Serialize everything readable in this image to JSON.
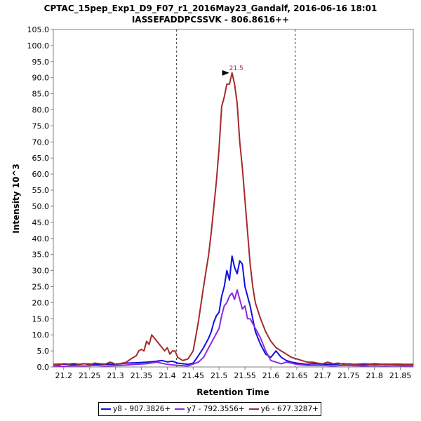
{
  "chart_data": {
    "type": "line",
    "title": "CPTAC_15pep_Exp1_D9_F07_r1_2016May23_Gandalf, 2016-06-16 18:01",
    "subtitle": "IASSEFADDPCSSVK - 806.8616++",
    "xlabel": "Retention Time",
    "ylabel": "Intensity 10^3",
    "xlim": [
      21.18,
      21.875
    ],
    "ylim": [
      0,
      105
    ],
    "xticks": [
      "21.2",
      "21.3",
      "21.4",
      "21.5",
      "21.6",
      "21.7",
      "21.8"
    ],
    "xtick_values": [
      21.2,
      21.25,
      21.3,
      21.35,
      21.4,
      21.45,
      21.5,
      21.55,
      21.6,
      21.65,
      21.7,
      21.75,
      21.8,
      21.85
    ],
    "xtick_labels": [
      "21.2",
      "21.25",
      "21.3",
      "21.35",
      "21.4",
      "21.45",
      "21.5",
      "21.55",
      "21.6",
      "21.65",
      "21.7",
      "21.75",
      "21.8",
      "21.85"
    ],
    "ytick_values": [
      0,
      5,
      10,
      15,
      20,
      25,
      30,
      35,
      40,
      45,
      50,
      55,
      60,
      65,
      70,
      75,
      80,
      85,
      90,
      95,
      100,
      105
    ],
    "ytick_labels": [
      "0.0",
      "5.0",
      "10.0",
      "15.0",
      "20.0",
      "25.0",
      "30.0",
      "35.0",
      "40.0",
      "45.0",
      "50.0",
      "55.0",
      "60.0",
      "65.0",
      "70.0",
      "75.0",
      "80.0",
      "85.0",
      "90.0",
      "95.0",
      "100.0",
      "105.0"
    ],
    "grid": false,
    "legend_position": "bottom",
    "vlines": [
      21.418,
      21.647
    ],
    "annotation": {
      "text": "21.5",
      "x": 21.525,
      "y": 91.5
    },
    "series": [
      {
        "name": "y8 - 907.3826+",
        "color": "#1010e0",
        "x": [
          21.18,
          21.2,
          21.22,
          21.24,
          21.26,
          21.28,
          21.3,
          21.32,
          21.34,
          21.36,
          21.38,
          21.39,
          21.4,
          21.41,
          21.42,
          21.43,
          21.44,
          21.45,
          21.46,
          21.47,
          21.48,
          21.485,
          21.49,
          21.495,
          21.5,
          21.505,
          21.51,
          21.515,
          21.52,
          21.525,
          21.53,
          21.535,
          21.54,
          21.545,
          21.55,
          21.555,
          21.56,
          21.565,
          21.57,
          21.58,
          21.59,
          21.6,
          21.61,
          21.62,
          21.63,
          21.64,
          21.65,
          21.66,
          21.67,
          21.68,
          21.7,
          21.72,
          21.74,
          21.76,
          21.78,
          21.8,
          21.82,
          21.84,
          21.86,
          21.875
        ],
        "y": [
          0.8,
          0.9,
          0.7,
          1.0,
          0.8,
          0.9,
          0.8,
          1.2,
          1.3,
          1.5,
          1.8,
          2.0,
          1.6,
          1.8,
          1.2,
          1.0,
          0.8,
          1.2,
          3.5,
          6,
          9,
          11,
          14,
          16,
          17,
          22,
          25,
          30,
          27,
          34.5,
          31,
          29,
          33,
          32,
          25,
          22,
          19,
          15,
          11,
          7,
          4,
          3,
          5,
          3,
          2,
          1.5,
          1.2,
          1.0,
          0.8,
          1.0,
          0.9,
          0.8,
          1.0,
          0.8,
          0.7,
          1.0,
          0.8,
          0.9,
          0.8,
          0.8
        ]
      },
      {
        "name": "y7 - 792.3556+",
        "color": "#8a2be2",
        "x": [
          21.18,
          21.2,
          21.22,
          21.24,
          21.26,
          21.28,
          21.3,
          21.32,
          21.34,
          21.36,
          21.38,
          21.4,
          21.42,
          21.44,
          21.46,
          21.47,
          21.48,
          21.49,
          21.5,
          21.505,
          21.51,
          21.515,
          21.52,
          21.525,
          21.53,
          21.535,
          21.54,
          21.545,
          21.55,
          21.555,
          21.56,
          21.57,
          21.58,
          21.59,
          21.6,
          21.61,
          21.62,
          21.63,
          21.64,
          21.65,
          21.67,
          21.7,
          21.72,
          21.74,
          21.76,
          21.78,
          21.8,
          21.82,
          21.84,
          21.86,
          21.875
        ],
        "y": [
          0.3,
          0.2,
          0.4,
          0.3,
          0.5,
          0.3,
          0.4,
          0.6,
          0.8,
          1.0,
          1.5,
          0.8,
          0.5,
          0.3,
          1.5,
          3,
          6,
          9,
          12,
          16,
          19,
          20,
          22,
          23,
          21,
          24,
          21,
          18,
          19,
          15,
          15,
          12,
          9,
          5,
          2,
          1.5,
          1,
          1.5,
          1.2,
          0.8,
          0.5,
          0.5,
          0.3,
          0.5,
          0.4,
          0.3,
          0.4,
          0.3,
          0.4,
          0.3,
          0.3
        ]
      },
      {
        "name": "y6 - 677.3287+",
        "color": "#a52a2a",
        "x": [
          21.18,
          21.19,
          21.2,
          21.21,
          21.22,
          21.23,
          21.24,
          21.25,
          21.26,
          21.27,
          21.28,
          21.29,
          21.3,
          21.31,
          21.32,
          21.33,
          21.34,
          21.345,
          21.35,
          21.355,
          21.36,
          21.365,
          21.37,
          21.375,
          21.38,
          21.385,
          21.39,
          21.395,
          21.4,
          21.405,
          21.41,
          21.415,
          21.42,
          21.43,
          21.44,
          21.45,
          21.46,
          21.47,
          21.48,
          21.485,
          21.49,
          21.495,
          21.5,
          21.505,
          21.51,
          21.515,
          21.52,
          21.525,
          21.53,
          21.535,
          21.54,
          21.545,
          21.55,
          21.555,
          21.56,
          21.565,
          21.57,
          21.58,
          21.59,
          21.6,
          21.61,
          21.62,
          21.63,
          21.64,
          21.65,
          21.66,
          21.67,
          21.68,
          21.69,
          21.7,
          21.71,
          21.72,
          21.73,
          21.74,
          21.75,
          21.76,
          21.78,
          21.8,
          21.82,
          21.84,
          21.86,
          21.875
        ],
        "y": [
          0.8,
          0.6,
          1.0,
          0.9,
          1.1,
          0.8,
          1.0,
          0.7,
          1.2,
          1.0,
          0.9,
          1.5,
          0.9,
          1.1,
          1.4,
          2.5,
          3.5,
          5,
          5.5,
          5,
          8,
          7,
          10,
          9,
          8,
          7,
          6,
          5,
          6,
          4,
          5,
          5,
          3,
          2,
          2.5,
          5,
          14,
          25,
          35,
          42,
          50,
          58,
          68,
          81,
          84,
          88,
          88,
          91.5,
          88,
          82,
          70,
          62,
          52,
          42,
          32,
          25,
          20,
          15,
          11,
          8,
          6,
          5,
          4,
          3,
          2.5,
          2,
          1.5,
          1.5,
          1.2,
          1.0,
          1.5,
          1.0,
          1.2,
          0.8,
          1.0,
          0.8,
          1.0,
          0.8,
          0.9,
          0.8,
          0.7,
          0.7
        ]
      }
    ]
  }
}
